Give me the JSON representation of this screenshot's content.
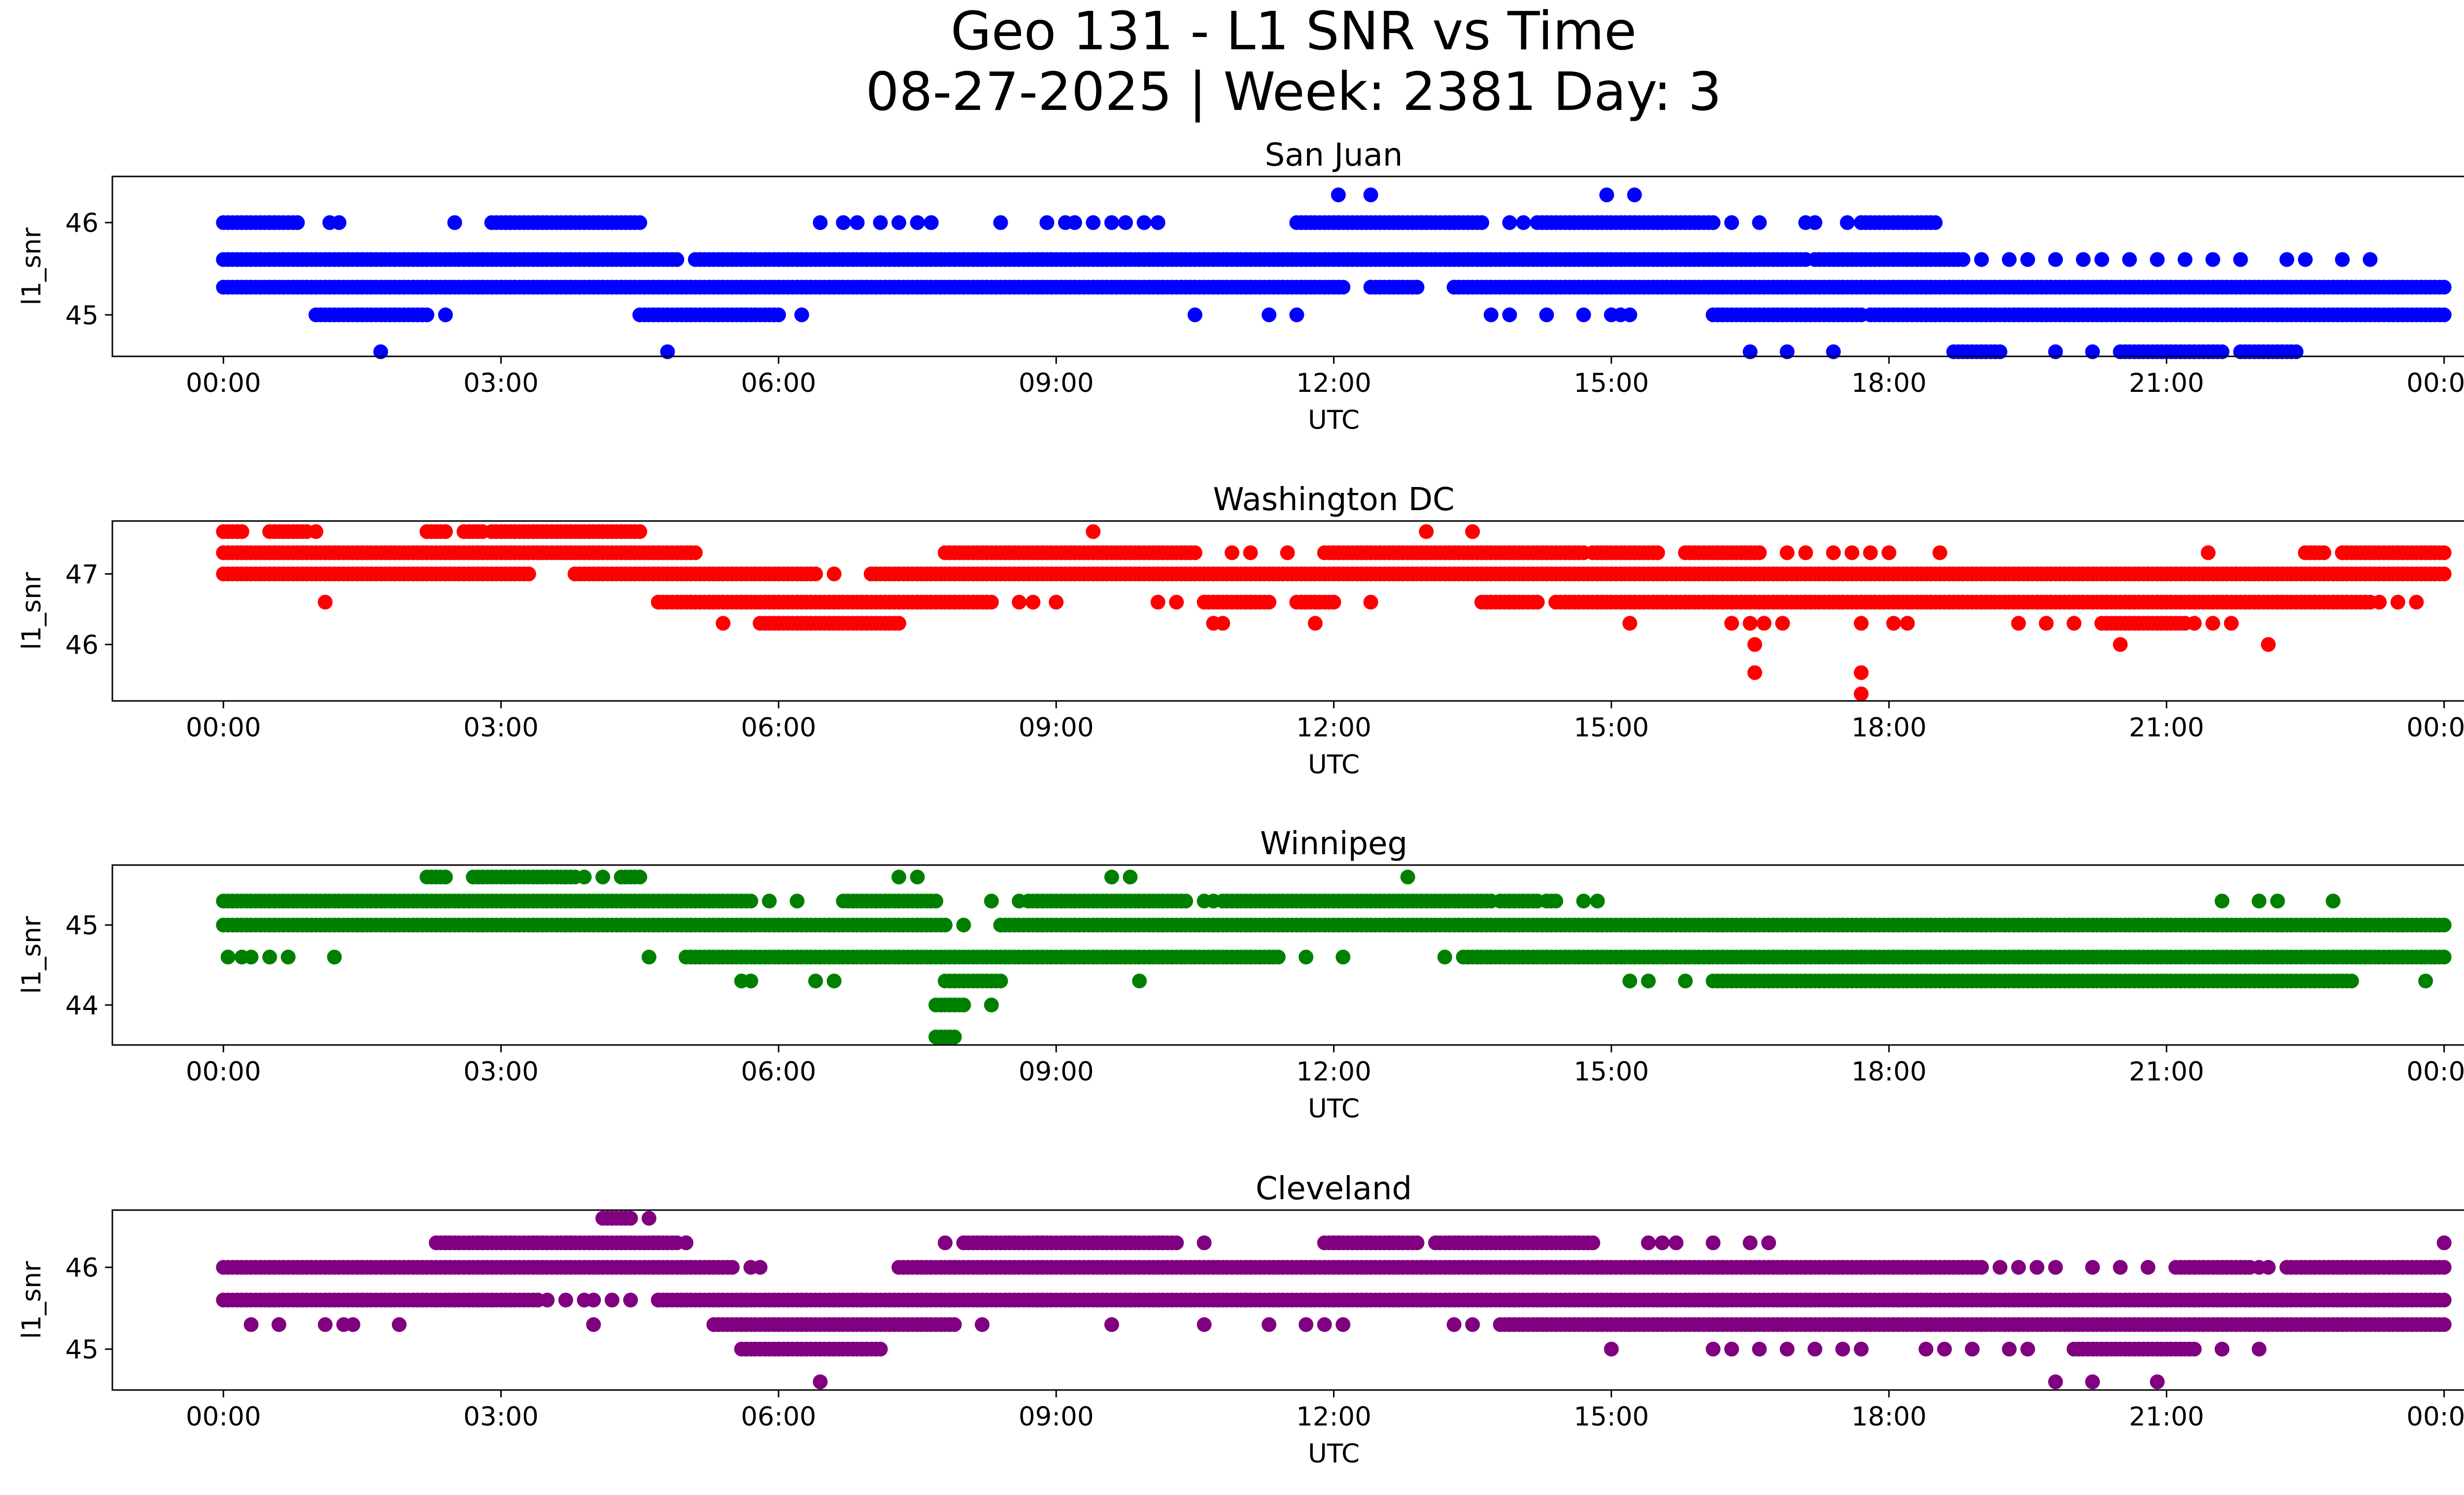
{
  "figure": {
    "title_line1": "Geo 131 - L1 SNR vs Time",
    "title_line2": "08-27-2025 | Week: 2381 Day: 3"
  },
  "chart_data": [
    {
      "type": "scatter",
      "title": "San Juan",
      "xlabel": "UTC",
      "ylabel": "l1_snr",
      "color": "#0000ff",
      "xlim_hours": [
        -1.2,
        25.2
      ],
      "ylim": [
        44.55,
        46.5
      ],
      "yticks": [
        45,
        46
      ],
      "xtick_labels": [
        "00:00",
        "03:00",
        "06:00",
        "09:00",
        "12:00",
        "15:00",
        "18:00",
        "21:00",
        "00:00"
      ],
      "xtick_hours": [
        0,
        3,
        6,
        9,
        12,
        15,
        18,
        21,
        24
      ],
      "series": [
        {
          "y": 46.3,
          "segments": [],
          "points": [
            12.05,
            12.4,
            14.95,
            15.25
          ]
        },
        {
          "y": 46.0,
          "segments": [
            [
              0,
              0.8
            ],
            [
              2.9,
              4.5
            ],
            [
              11.6,
              13.6
            ],
            [
              14.2,
              16.1
            ],
            [
              17.7,
              18.5
            ]
          ],
          "points": [
            1.15,
            1.25,
            2.5,
            6.45,
            6.7,
            6.85,
            7.1,
            7.3,
            7.5,
            7.65,
            8.4,
            8.9,
            9.1,
            9.2,
            9.4,
            9.6,
            9.75,
            9.95,
            10.1,
            13.9,
            14.05,
            16.3,
            16.6,
            17.1,
            17.2,
            17.55,
            17.7
          ]
        },
        {
          "y": 45.6,
          "segments": [
            [
              0,
              4.9
            ],
            [
              5.1,
              17.1
            ],
            [
              17.2,
              18.8
            ]
          ],
          "points": [
            19.0,
            19.3,
            19.5,
            19.8,
            20.1,
            20.3,
            20.6,
            20.9,
            21.2,
            21.5,
            21.8,
            22.3,
            22.5,
            22.9,
            23.2
          ]
        },
        {
          "y": 45.3,
          "segments": [
            [
              0,
              12.1
            ],
            [
              12.4,
              12.9
            ],
            [
              13.3,
              24
            ]
          ],
          "points": []
        },
        {
          "y": 45.0,
          "segments": [
            [
              1.0,
              2.2
            ],
            [
              4.5,
              6.0
            ],
            [
              16.1,
              17.7
            ],
            [
              17.8,
              18.5
            ],
            [
              18.5,
              24
            ]
          ],
          "points": [
            2.4,
            6.25,
            10.5,
            11.3,
            11.6,
            13.7,
            13.9,
            14.3,
            14.7,
            15.0,
            15.1,
            15.2
          ]
        },
        {
          "y": 44.6,
          "segments": [
            [
              18.7,
              19.2
            ],
            [
              20.5,
              21.6
            ],
            [
              21.8,
              22.4
            ]
          ],
          "points": [
            1.7,
            4.8,
            16.5,
            16.9,
            17.4,
            19.8,
            20.2
          ]
        }
      ]
    },
    {
      "type": "scatter",
      "title": "Washington DC",
      "xlabel": "UTC",
      "ylabel": "l1_snr",
      "color": "#ff0000",
      "xlim_hours": [
        -1.2,
        25.2
      ],
      "ylim": [
        45.2,
        47.75
      ],
      "yticks": [
        46,
        47
      ],
      "xtick_labels": [
        "00:00",
        "03:00",
        "06:00",
        "09:00",
        "12:00",
        "15:00",
        "18:00",
        "21:00",
        "00:00"
      ],
      "xtick_hours": [
        0,
        3,
        6,
        9,
        12,
        15,
        18,
        21,
        24
      ],
      "series": [
        {
          "y": 47.6,
          "segments": [
            [
              0,
              0.2
            ],
            [
              0.5,
              0.9
            ],
            [
              2.2,
              2.4
            ],
            [
              2.6,
              2.8
            ],
            [
              2.9,
              4.5
            ]
          ],
          "points": [
            1.0,
            9.4,
            13.0,
            13.5
          ]
        },
        {
          "y": 47.3,
          "segments": [
            [
              0,
              5.1
            ],
            [
              7.8,
              10.5
            ],
            [
              11.9,
              14.7
            ],
            [
              14.8,
              15.5
            ],
            [
              15.8,
              16.6
            ],
            [
              22.5,
              22.7
            ],
            [
              22.9,
              24
            ]
          ],
          "points": [
            10.9,
            11.1,
            11.5,
            16.9,
            17.1,
            17.4,
            17.6,
            17.8,
            18.0,
            18.55,
            21.45
          ]
        },
        {
          "y": 47.0,
          "segments": [
            [
              0,
              3.3
            ],
            [
              3.8,
              6.4
            ],
            [
              7.0,
              24
            ]
          ],
          "points": [
            6.6
          ]
        },
        {
          "y": 46.6,
          "segments": [
            [
              4.7,
              8.3
            ],
            [
              10.6,
              11.3
            ],
            [
              11.6,
              12.0
            ],
            [
              13.6,
              14.2
            ],
            [
              14.4,
              16.1
            ],
            [
              16.1,
              23.2
            ]
          ],
          "points": [
            1.1,
            8.6,
            8.75,
            9.0,
            10.1,
            10.3,
            12.4,
            23.3,
            23.5,
            23.7
          ]
        },
        {
          "y": 46.3,
          "segments": [
            [
              5.8,
              7.3
            ],
            [
              20.3,
              21.2
            ]
          ],
          "points": [
            5.4,
            10.7,
            10.8,
            11.8,
            15.2,
            16.3,
            16.5,
            16.65,
            16.85,
            17.7,
            18.05,
            18.2,
            19.4,
            19.7,
            20.0,
            21.3,
            21.5,
            21.7
          ]
        },
        {
          "y": 46.0,
          "points": [
            16.55,
            20.5,
            22.1
          ],
          "segments": []
        },
        {
          "y": 45.6,
          "points": [
            16.55,
            17.7
          ],
          "segments": []
        },
        {
          "y": 45.3,
          "points": [
            17.7
          ],
          "segments": []
        }
      ]
    },
    {
      "type": "scatter",
      "title": "Winnipeg",
      "xlabel": "UTC",
      "ylabel": "l1_snr",
      "color": "#008000",
      "xlim_hours": [
        -1.2,
        25.2
      ],
      "ylim": [
        43.5,
        45.75
      ],
      "yticks": [
        44,
        45
      ],
      "xtick_labels": [
        "00:00",
        "03:00",
        "06:00",
        "09:00",
        "12:00",
        "15:00",
        "18:00",
        "21:00",
        "00:00"
      ],
      "xtick_hours": [
        0,
        3,
        6,
        9,
        12,
        15,
        18,
        21,
        24
      ],
      "series": [
        {
          "y": 45.6,
          "segments": [
            [
              2.2,
              2.4
            ],
            [
              2.7,
              3.8
            ],
            [
              4.3,
              4.5
            ]
          ],
          "points": [
            3.9,
            4.1,
            7.3,
            7.5,
            9.6,
            9.8,
            12.8
          ]
        },
        {
          "y": 45.3,
          "segments": [
            [
              0,
              5.7
            ],
            [
              6.7,
              7.7
            ],
            [
              8.7,
              10.4
            ],
            [
              10.8,
              13.7
            ],
            [
              13.8,
              14.2
            ],
            [
              14.3,
              14.4
            ]
          ],
          "points": [
            0.1,
            0.3,
            5.9,
            6.2,
            8.3,
            8.6,
            10.6,
            10.7,
            14.7,
            14.85,
            21.6,
            22.0,
            22.2,
            22.8
          ]
        },
        {
          "y": 45.0,
          "segments": [
            [
              0,
              7.8
            ],
            [
              8.4,
              24
            ]
          ],
          "points": [
            8.0
          ]
        },
        {
          "y": 44.6,
          "segments": [
            [
              5.0,
              11.4
            ],
            [
              13.4,
              24
            ]
          ],
          "points": [
            0.05,
            0.2,
            0.3,
            0.5,
            0.7,
            1.2,
            4.6,
            11.7,
            12.1,
            13.2
          ]
        },
        {
          "y": 44.3,
          "segments": [
            [
              7.8,
              8.4
            ],
            [
              16.1,
              23.0
            ]
          ],
          "points": [
            5.6,
            5.7,
            6.4,
            6.6,
            9.9,
            15.2,
            15.4,
            15.8,
            23.8
          ]
        },
        {
          "y": 44.0,
          "segments": [
            [
              7.7,
              8.0
            ]
          ],
          "points": [
            8.3
          ]
        },
        {
          "y": 43.6,
          "segments": [
            [
              7.7,
              7.9
            ]
          ],
          "points": []
        }
      ]
    },
    {
      "type": "scatter",
      "title": "Cleveland",
      "xlabel": "UTC",
      "ylabel": "l1_snr",
      "color": "#800080",
      "xlim_hours": [
        -1.2,
        25.2
      ],
      "ylim": [
        44.5,
        46.7
      ],
      "yticks": [
        45,
        46
      ],
      "xtick_labels": [
        "00:00",
        "03:00",
        "06:00",
        "09:00",
        "12:00",
        "15:00",
        "18:00",
        "21:00",
        "00:00"
      ],
      "xtick_hours": [
        0,
        3,
        6,
        9,
        12,
        15,
        18,
        21,
        24
      ],
      "series": [
        {
          "y": 46.6,
          "segments": [
            [
              4.1,
              4.4
            ]
          ],
          "points": [
            4.6
          ]
        },
        {
          "y": 46.3,
          "segments": [
            [
              2.3,
              4.9
            ],
            [
              8.0,
              10.3
            ],
            [
              11.9,
              12.9
            ],
            [
              13.1,
              14.8
            ]
          ],
          "points": [
            5.0,
            7.8,
            10.6,
            15.4,
            15.55,
            15.7,
            16.1,
            16.5,
            16.7,
            24.0
          ]
        },
        {
          "y": 46.0,
          "segments": [
            [
              0,
              5.5
            ],
            [
              7.3,
              19.0
            ],
            [
              21.1,
              21.9
            ],
            [
              22.3,
              24
            ]
          ],
          "points": [
            5.7,
            5.8,
            19.2,
            19.4,
            19.6,
            19.8,
            20.2,
            20.5,
            20.8,
            22.0,
            22.1
          ]
        },
        {
          "y": 45.6,
          "segments": [
            [
              0,
              2.3
            ],
            [
              2.3,
              3.4
            ],
            [
              4.7,
              24
            ]
          ],
          "points": [
            2.5,
            2.9,
            3.5,
            3.7,
            3.9,
            4.0,
            4.2,
            4.4
          ]
        },
        {
          "y": 45.3,
          "segments": [
            [
              5.3,
              7.9
            ],
            [
              13.8,
              24
            ]
          ],
          "points": [
            0.3,
            0.6,
            1.1,
            1.3,
            1.4,
            1.9,
            4.0,
            8.2,
            9.6,
            10.6,
            11.3,
            11.7,
            11.9,
            12.1,
            13.3,
            13.5
          ]
        },
        {
          "y": 45.0,
          "segments": [
            [
              5.6,
              7.1
            ],
            [
              20.0,
              21.3
            ]
          ],
          "points": [
            15.0,
            16.1,
            16.3,
            16.6,
            16.9,
            17.2,
            17.5,
            17.7,
            18.4,
            18.6,
            18.9,
            19.3,
            19.5,
            21.6,
            22.0
          ]
        },
        {
          "y": 44.6,
          "segments": [],
          "points": [
            6.45,
            19.8,
            20.2,
            20.9
          ]
        }
      ]
    }
  ]
}
